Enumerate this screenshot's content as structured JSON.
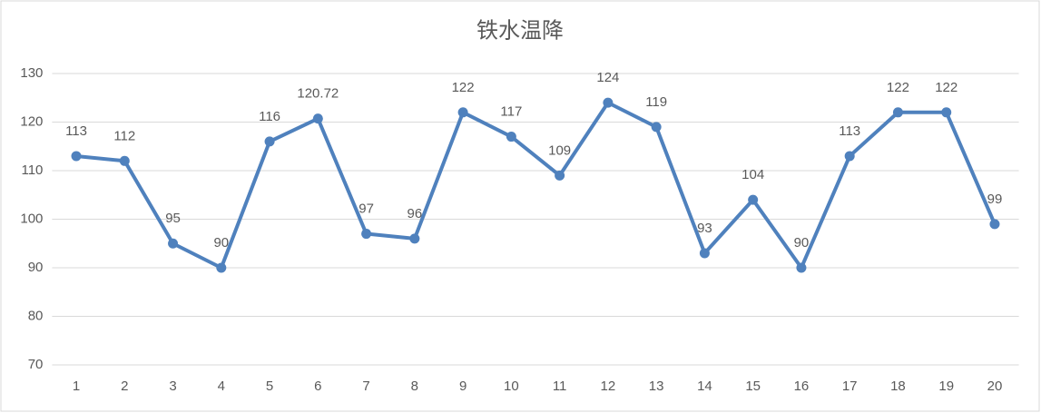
{
  "chart_data": {
    "type": "line",
    "title": "铁水温降",
    "categories": [
      "1",
      "2",
      "3",
      "4",
      "5",
      "6",
      "7",
      "8",
      "9",
      "10",
      "11",
      "12",
      "13",
      "14",
      "15",
      "16",
      "17",
      "18",
      "19",
      "20"
    ],
    "values": [
      113,
      112,
      95,
      90,
      116,
      120.72,
      97,
      96,
      122,
      117,
      109,
      124,
      119,
      93,
      104,
      90,
      113,
      122,
      122,
      99
    ],
    "color": "#4f81bd",
    "ylim": [
      70,
      130
    ],
    "yticks": [
      70,
      80,
      90,
      100,
      110,
      120,
      130
    ],
    "grid": true,
    "data_labels": true
  }
}
